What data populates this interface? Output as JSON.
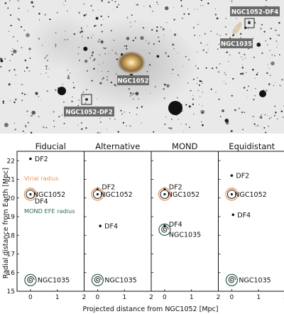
{
  "sky_image": {
    "labels": [
      {
        "id": "ngc1052",
        "text": "NGC1052"
      },
      {
        "id": "ngc1052df2",
        "text": "NGC1052-DF2"
      },
      {
        "id": "ngc1052df4",
        "text": "NGC1052-DF4"
      },
      {
        "id": "ngc1035",
        "text": "NGC1035"
      }
    ]
  },
  "figure": {
    "ylabel": "Radial distance from Earth [Mpc]",
    "xlabel": "Projected distance from NGC1052 [Mpc]",
    "annotations": {
      "virial_radius": "Virial radius",
      "mond_efe_radius": "MOND EFE radius"
    },
    "colors": {
      "virial": "#e8955a",
      "efe": "#2f6b55"
    }
  },
  "chart_data": [
    {
      "type": "scatter",
      "title": "Fiducial",
      "xlim": [
        -0.5,
        2
      ],
      "ylim": [
        15,
        22.5
      ],
      "xticks": [
        "0",
        "1",
        "2"
      ],
      "yticks": [
        "15",
        "16",
        "17",
        "18",
        "19",
        "20",
        "21",
        "22"
      ],
      "points": [
        {
          "name": "DF2",
          "x": 0,
          "y": 22.1,
          "marker": "dot"
        },
        {
          "name": "NGC1052",
          "x": 0,
          "y": 20.2,
          "marker": "circled-dot"
        },
        {
          "name": "DF4",
          "x": 0,
          "y": 19.9,
          "marker": "none"
        },
        {
          "name": "NGC1035",
          "x": 0,
          "y": 15.6,
          "marker": "spiral"
        }
      ]
    },
    {
      "type": "scatter",
      "title": "Alternative",
      "xlim": [
        -0.5,
        2
      ],
      "ylim": [
        15,
        22.5
      ],
      "xticks": [
        "0",
        "1",
        "2"
      ],
      "points": [
        {
          "name": "DF2",
          "x": 0,
          "y": 20.5,
          "marker": "dot"
        },
        {
          "name": "NGC1052",
          "x": 0,
          "y": 20.2,
          "marker": "circled-dot"
        },
        {
          "name": "DF4",
          "x": 0.1,
          "y": 18.5,
          "marker": "dot"
        },
        {
          "name": "NGC1035",
          "x": 0,
          "y": 15.6,
          "marker": "spiral"
        }
      ]
    },
    {
      "type": "scatter",
      "title": "MOND",
      "xlim": [
        -0.5,
        2
      ],
      "ylim": [
        15,
        22.5
      ],
      "xticks": [
        "0",
        "1",
        "2"
      ],
      "points": [
        {
          "name": "DF2",
          "x": 0,
          "y": 20.5,
          "marker": "dot"
        },
        {
          "name": "NGC1052",
          "x": 0,
          "y": 20.2,
          "marker": "circled-dot"
        },
        {
          "name": "DF4",
          "x": 0,
          "y": 18.5,
          "marker": "dot"
        },
        {
          "name": "NGC1035",
          "x": 0,
          "y": 18.3,
          "marker": "spiral-efe"
        }
      ]
    },
    {
      "type": "scatter",
      "title": "Equidistant",
      "xlim": [
        -0.5,
        2
      ],
      "ylim": [
        15,
        22.5
      ],
      "xticks": [
        "0",
        "1",
        "2"
      ],
      "points": [
        {
          "name": "DF2",
          "x": 0,
          "y": 21.2,
          "marker": "dot"
        },
        {
          "name": "NGC1052",
          "x": 0,
          "y": 20.2,
          "marker": "circled-dot"
        },
        {
          "name": "DF4",
          "x": 0.05,
          "y": 19.1,
          "marker": "dot"
        },
        {
          "name": "NGC1035",
          "x": 0,
          "y": 15.6,
          "marker": "spiral"
        }
      ]
    }
  ]
}
